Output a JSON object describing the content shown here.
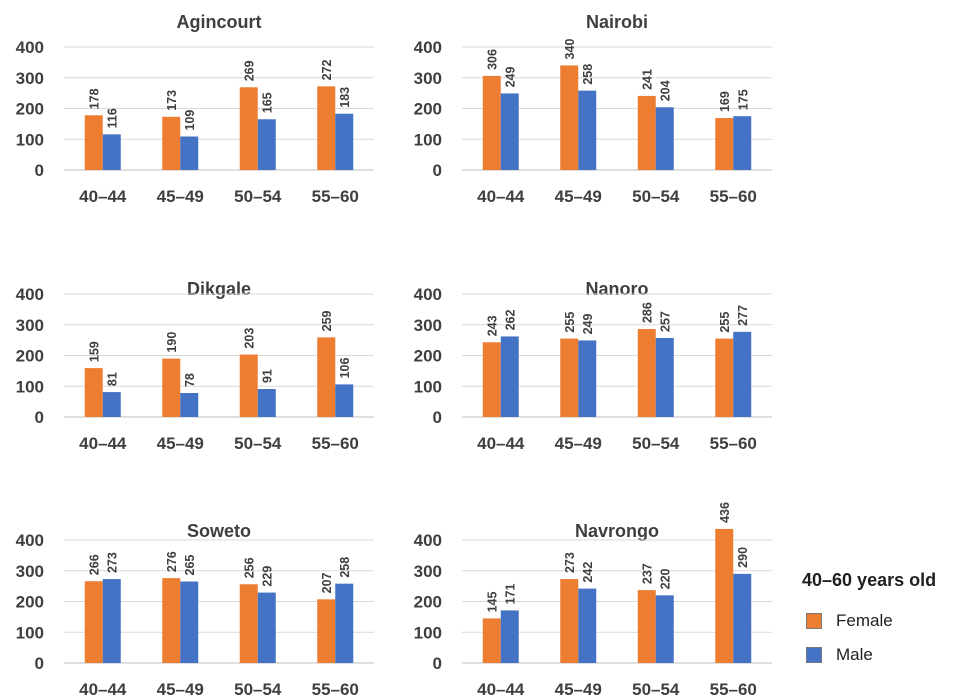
{
  "colors": {
    "female": "#ED7D31",
    "male": "#4472C4",
    "text": "#3f3f3f",
    "grid": "#d9d9d9"
  },
  "legend": {
    "title": "40–60 years old",
    "items": [
      {
        "label": "Female",
        "color": "#ED7D31"
      },
      {
        "label": "Male",
        "color": "#4472C4"
      }
    ]
  },
  "chart_data": [
    {
      "type": "bar",
      "title": "Agincourt",
      "categories": [
        "40–44",
        "45–49",
        "50–54",
        "55–60"
      ],
      "ylim": [
        0,
        400
      ],
      "yticks": [
        0,
        100,
        200,
        300,
        400
      ],
      "grid": true,
      "series": [
        {
          "name": "Female",
          "values": [
            178,
            173,
            269,
            272
          ]
        },
        {
          "name": "Male",
          "values": [
            116,
            109,
            165,
            183
          ]
        }
      ]
    },
    {
      "type": "bar",
      "title": "Nairobi",
      "categories": [
        "40–44",
        "45–49",
        "50–54",
        "55–60"
      ],
      "ylim": [
        0,
        400
      ],
      "yticks": [
        0,
        100,
        200,
        300,
        400
      ],
      "grid": true,
      "series": [
        {
          "name": "Female",
          "values": [
            306,
            340,
            241,
            169
          ]
        },
        {
          "name": "Male",
          "values": [
            249,
            258,
            204,
            175
          ]
        }
      ]
    },
    {
      "type": "bar",
      "title": "Dikgale",
      "categories": [
        "40–44",
        "45–49",
        "50–54",
        "55–60"
      ],
      "ylim": [
        0,
        400
      ],
      "yticks": [
        0,
        100,
        200,
        300,
        400
      ],
      "grid": true,
      "series": [
        {
          "name": "Female",
          "values": [
            159,
            190,
            203,
            259
          ]
        },
        {
          "name": "Male",
          "values": [
            81,
            78,
            91,
            106
          ]
        }
      ]
    },
    {
      "type": "bar",
      "title": "Nanoro",
      "categories": [
        "40–44",
        "45–49",
        "50–54",
        "55–60"
      ],
      "ylim": [
        0,
        400
      ],
      "yticks": [
        0,
        100,
        200,
        300,
        400
      ],
      "grid": true,
      "series": [
        {
          "name": "Female",
          "values": [
            243,
            255,
            286,
            255
          ]
        },
        {
          "name": "Male",
          "values": [
            262,
            249,
            257,
            277
          ]
        }
      ]
    },
    {
      "type": "bar",
      "title": "Soweto",
      "categories": [
        "40–44",
        "45–49",
        "50–54",
        "55–60"
      ],
      "ylim": [
        0,
        400
      ],
      "yticks": [
        0,
        100,
        200,
        300,
        400
      ],
      "grid": true,
      "series": [
        {
          "name": "Female",
          "values": [
            266,
            276,
            256,
            207
          ]
        },
        {
          "name": "Male",
          "values": [
            273,
            265,
            229,
            258
          ]
        }
      ]
    },
    {
      "type": "bar",
      "title": "Navrongo",
      "categories": [
        "40–44",
        "45–49",
        "50–54",
        "55–60"
      ],
      "ylim": [
        0,
        400
      ],
      "yticks": [
        0,
        100,
        200,
        300,
        400
      ],
      "grid": true,
      "series": [
        {
          "name": "Female",
          "values": [
            145,
            273,
            237,
            436
          ]
        },
        {
          "name": "Male",
          "values": [
            171,
            242,
            220,
            290
          ]
        }
      ]
    }
  ]
}
